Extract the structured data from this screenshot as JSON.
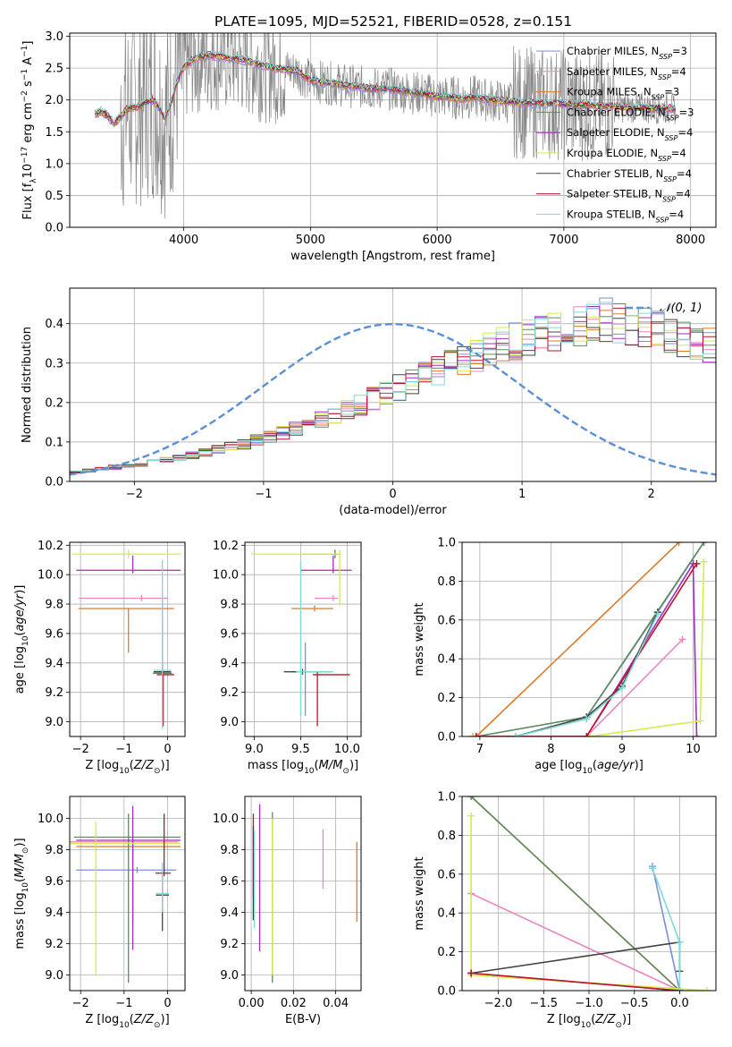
{
  "figure_title": "PLATE=1095, MJD=52521, FIBERID=0528, z=0.151",
  "models": [
    {
      "name": "Chabrier MILES",
      "nssp": "3",
      "color": "#7b8fd8"
    },
    {
      "name": "Salpeter MILES",
      "nssp": "4",
      "color": "#e887c2"
    },
    {
      "name": "Kroupa MILES",
      "nssp": "3",
      "color": "#e07a2a"
    },
    {
      "name": "Chabrier ELODIE",
      "nssp": "3",
      "color": "#5e8a60"
    },
    {
      "name": "Salpeter ELODIE",
      "nssp": "4",
      "color": "#9b30c0"
    },
    {
      "name": "Kroupa ELODIE",
      "nssp": "4",
      "color": "#d4ec4a"
    },
    {
      "name": "Chabrier STELIB",
      "nssp": "4",
      "color": "#444444"
    },
    {
      "name": "Salpeter STELIB",
      "nssp": "4",
      "color": "#c0102a"
    },
    {
      "name": "Kroupa STELIB",
      "nssp": "4",
      "color": "#7fd9d6"
    }
  ],
  "chart_data": [
    {
      "id": "spectrum",
      "type": "line",
      "xlabel": "wavelength [Angstrom, rest frame]",
      "ylabel": "Flux [f_λ 10^-17 erg cm^-2 s^-1 A^-1]",
      "xlim": [
        3100,
        8200
      ],
      "ylim": [
        0,
        3.05
      ],
      "xticks": [
        4000,
        5000,
        6000,
        7000,
        8000
      ],
      "yticks": [
        0.0,
        0.5,
        1.0,
        1.5,
        2.0,
        2.5,
        3.0
      ],
      "observed_color": "#888888",
      "x": [
        3300,
        3350,
        3400,
        3450,
        3500,
        3550,
        3600,
        3650,
        3700,
        3750,
        3800,
        3850,
        3900,
        3950,
        4000,
        4050,
        4100,
        4150,
        4200,
        4300,
        4400,
        4500,
        4600,
        4700,
        4800,
        4900,
        5000,
        5100,
        5200,
        5300,
        5400,
        5500,
        5600,
        5700,
        5800,
        5900,
        6000,
        6100,
        6200,
        6300,
        6400,
        6500,
        6600,
        6700,
        6800,
        6900,
        7000,
        7100,
        7200,
        7300,
        7400,
        7500,
        7600,
        7700,
        7800,
        7900
      ],
      "model_flux": [
        1.78,
        1.82,
        1.75,
        1.62,
        1.73,
        1.85,
        1.88,
        1.9,
        1.97,
        2.0,
        1.9,
        1.7,
        1.95,
        2.3,
        2.5,
        2.6,
        2.65,
        2.68,
        2.7,
        2.68,
        2.65,
        2.62,
        2.55,
        2.5,
        2.48,
        2.45,
        2.3,
        2.28,
        2.25,
        2.22,
        2.2,
        2.18,
        2.18,
        2.15,
        2.12,
        2.1,
        2.05,
        2.05,
        2.02,
        2.05,
        2.0,
        1.98,
        1.97,
        1.95,
        1.95,
        1.95,
        1.93,
        1.92,
        1.92,
        1.9,
        1.9,
        1.88,
        1.88,
        1.87,
        1.87,
        1.85
      ],
      "legend": "top-right"
    },
    {
      "id": "residual_hist",
      "type": "histogram",
      "xlabel": "(data-model)/error",
      "ylabel": "Normed distribution",
      "xlim": [
        -2.5,
        2.5
      ],
      "ylim": [
        0,
        0.49
      ],
      "xticks": [
        -2,
        -1,
        0,
        1,
        2
      ],
      "yticks": [
        0.0,
        0.1,
        0.2,
        0.3,
        0.4
      ],
      "gaussian_label": "𝒩(0, 1)",
      "gaussian_color": "#5b8fd6",
      "bin_width": 0.1,
      "bin_start": -2.5,
      "base_heights": [
        0.024,
        0.028,
        0.032,
        0.036,
        0.04,
        0.044,
        0.05,
        0.055,
        0.06,
        0.066,
        0.073,
        0.08,
        0.088,
        0.095,
        0.104,
        0.113,
        0.123,
        0.133,
        0.145,
        0.156,
        0.168,
        0.182,
        0.195,
        0.21,
        0.225,
        0.238,
        0.252,
        0.266,
        0.28,
        0.294,
        0.308,
        0.32,
        0.332,
        0.344,
        0.355,
        0.364,
        0.372,
        0.38,
        0.388,
        0.395,
        0.4,
        0.41,
        0.405,
        0.395,
        0.39,
        0.382,
        0.375,
        0.366,
        0.355,
        0.345,
        0.333,
        0.32,
        0.308,
        0.295,
        0.282,
        0.268,
        0.252,
        0.238,
        0.225,
        0.21,
        0.196,
        0.182,
        0.169,
        0.156,
        0.145,
        0.133,
        0.121,
        0.11,
        0.1,
        0.092,
        0.083,
        0.075,
        0.067,
        0.06,
        0.054,
        0.048,
        0.044,
        0.04,
        0.037,
        0.034,
        0.032,
        0.03,
        0.03,
        0.032,
        0.034,
        0.038,
        0.04,
        0.042,
        0.044,
        0.044,
        0.043,
        0.042,
        0.04,
        0.04,
        0.04,
        0.04,
        0.04,
        0.04,
        0.04,
        0.04
      ]
    },
    {
      "id": "age_vs_Z",
      "type": "errorbar",
      "xlabel": "Z [log10(Z/Z⊙)]",
      "ylabel": "age  [log10(age/yr)]",
      "xlim": [
        -2.25,
        0.4
      ],
      "ylim": [
        8.9,
        10.22
      ],
      "xticks": [
        -2,
        -1,
        0
      ],
      "yticks": [
        9.0,
        9.2,
        9.4,
        9.6,
        9.8,
        10.0,
        10.2
      ],
      "points": [
        {
          "x": -0.12,
          "y": 9.34,
          "xerr": [
            0.2,
            0.2
          ],
          "yerr": [
            0.3,
            0.5
          ],
          "model": 0
        },
        {
          "x": -0.6,
          "y": 9.84,
          "xerr": [
            1.45,
            0.6
          ],
          "yerr": [
            0.02,
            0.02
          ],
          "model": 1
        },
        {
          "x": -0.9,
          "y": 9.77,
          "xerr": [
            1.15,
            1.05
          ],
          "yerr": [
            0.3,
            0.0
          ],
          "model": 2
        },
        {
          "x": -0.12,
          "y": 9.33,
          "xerr": [
            0.22,
            0.22
          ],
          "yerr": [
            0.3,
            0.35
          ],
          "model": 3
        },
        {
          "x": -0.8,
          "y": 10.03,
          "xerr": [
            1.3,
            1.1
          ],
          "yerr": [
            0.02,
            0.1
          ],
          "model": 4
        },
        {
          "x": -0.9,
          "y": 10.14,
          "xerr": [
            1.3,
            1.2
          ],
          "yerr": [
            0.03,
            0.03
          ],
          "model": 5
        },
        {
          "x": -0.12,
          "y": 9.34,
          "xerr": [
            0.2,
            0.2
          ],
          "yerr": [
            0.02,
            0.02
          ],
          "model": 6
        },
        {
          "x": -0.1,
          "y": 9.32,
          "xerr": [
            0.15,
            0.25
          ],
          "yerr": [
            0.35,
            0.02
          ],
          "model": 7
        },
        {
          "x": -0.12,
          "y": 9.35,
          "xerr": [
            0.2,
            0.2
          ],
          "yerr": [
            0.4,
            0.75
          ],
          "model": 8
        }
      ]
    },
    {
      "id": "age_vs_mass",
      "type": "errorbar",
      "xlabel": "mass [log10(M/M⊙)]",
      "ylabel": "",
      "xlim": [
        8.9,
        10.15
      ],
      "ylim": [
        8.9,
        10.22
      ],
      "xticks": [
        9.0,
        9.5,
        10.0
      ],
      "yticks": [
        9.0,
        9.2,
        9.4,
        9.6,
        9.8,
        10.0,
        10.2
      ],
      "points": [
        {
          "x": 9.55,
          "y": 9.34,
          "xerr": [
            0.15,
            0.2
          ],
          "yerr": [
            0.3,
            0.2
          ],
          "model": 0
        },
        {
          "x": 9.85,
          "y": 9.84,
          "xerr": [
            0.2,
            0.05
          ],
          "yerr": [
            0.02,
            0.02
          ],
          "model": 1
        },
        {
          "x": 9.65,
          "y": 9.77,
          "xerr": [
            0.25,
            0.2
          ],
          "yerr": [
            0.02,
            0.02
          ],
          "model": 2
        },
        {
          "x": 9.87,
          "y": 10.14,
          "xerr": [
            0.35,
            0.05
          ],
          "yerr": [
            0.03,
            0.03
          ],
          "model": 3
        },
        {
          "x": 9.85,
          "y": 10.03,
          "xerr": [
            0.35,
            0.2
          ],
          "yerr": [
            0.02,
            0.1
          ],
          "model": 4
        },
        {
          "x": 9.92,
          "y": 10.14,
          "xerr": [
            0.95,
            0.0
          ],
          "yerr": [
            0.35,
            0.03
          ],
          "model": 5
        },
        {
          "x": 9.52,
          "y": 9.34,
          "xerr": [
            0.2,
            0.3
          ],
          "yerr": [
            0.02,
            0.02
          ],
          "model": 6
        },
        {
          "x": 9.68,
          "y": 9.32,
          "xerr": [
            0.05,
            0.35
          ],
          "yerr": [
            0.35,
            0.02
          ],
          "model": 7
        },
        {
          "x": 9.5,
          "y": 9.34,
          "xerr": [
            0.05,
            0.35
          ],
          "yerr": [
            0.3,
            0.75
          ],
          "model": 8
        }
      ]
    },
    {
      "id": "mass_weight_vs_age",
      "type": "line",
      "xlabel": "age  [log10(age/yr)]",
      "ylabel": "mass weight",
      "xlim": [
        6.75,
        10.32
      ],
      "ylim": [
        0,
        1.0
      ],
      "xticks": [
        7,
        8,
        9,
        10
      ],
      "yticks": [
        0.0,
        0.2,
        0.4,
        0.6,
        0.8,
        1.0
      ],
      "series": [
        {
          "model": 0,
          "x": [
            7.5,
            8.5,
            9.5,
            10.15
          ],
          "y": [
            0.0,
            0.1,
            0.64,
            1.0
          ]
        },
        {
          "model": 1,
          "x": [
            6.9,
            8.5,
            9.85
          ],
          "y": [
            0.0,
            0.0,
            0.5
          ]
        },
        {
          "model": 2,
          "x": [
            6.95,
            9.8
          ],
          "y": [
            0.0,
            1.0
          ]
        },
        {
          "model": 3,
          "x": [
            6.95,
            8.5,
            10.15
          ],
          "y": [
            0.0,
            0.1,
            1.0
          ]
        },
        {
          "model": 4,
          "x": [
            6.9,
            8.5,
            10.0,
            10.05
          ],
          "y": [
            0.0,
            0.0,
            0.89,
            0.0
          ]
        },
        {
          "model": 5,
          "x": [
            6.9,
            8.55,
            10.1,
            10.15
          ],
          "y": [
            0.0,
            0.0,
            0.08,
            0.9
          ]
        },
        {
          "model": 6,
          "x": [
            7.5,
            8.5,
            9.0,
            9.5
          ],
          "y": [
            0.0,
            0.1,
            0.26,
            0.64
          ]
        },
        {
          "model": 7,
          "x": [
            6.95,
            8.5,
            10.05
          ],
          "y": [
            0.0,
            0.0,
            0.89
          ]
        },
        {
          "model": 8,
          "x": [
            7.5,
            8.5,
            9.0,
            9.5
          ],
          "y": [
            0.0,
            0.09,
            0.25,
            0.63
          ]
        }
      ]
    },
    {
      "id": "mass_vs_Z",
      "type": "errorbar",
      "xlabel": "Z [log10(Z/Z⊙)]",
      "ylabel": "mass [log10(M/M⊙)]",
      "xlim": [
        -2.25,
        0.4
      ],
      "ylim": [
        8.9,
        10.14
      ],
      "xticks": [
        -2,
        -1,
        0
      ],
      "yticks": [
        9.0,
        9.2,
        9.4,
        9.6,
        9.8,
        10.0
      ],
      "points": [
        {
          "x": -0.7,
          "y": 9.67,
          "xerr": [
            1.4,
            0.9
          ],
          "yerr": [
            0.02,
            0.02
          ],
          "model": 0
        },
        {
          "x": -0.9,
          "y": 9.85,
          "xerr": [
            1.4,
            1.15
          ],
          "yerr": [
            0.02,
            0.02
          ],
          "model": 1
        },
        {
          "x": -0.8,
          "y": 9.82,
          "xerr": [
            1.3,
            1.1
          ],
          "yerr": [
            0.5,
            0.02
          ],
          "model": 2
        },
        {
          "x": -0.9,
          "y": 9.88,
          "xerr": [
            1.25,
            1.2
          ],
          "yerr": [
            0.93,
            0.15
          ],
          "model": 3
        },
        {
          "x": -0.8,
          "y": 9.86,
          "xerr": [
            1.3,
            1.1
          ],
          "yerr": [
            0.7,
            0.22
          ],
          "model": 4
        },
        {
          "x": -1.65,
          "y": 9.84,
          "xerr": [
            0.6,
            1.95
          ],
          "yerr": [
            0.84,
            0.14
          ],
          "model": 5
        },
        {
          "x": -0.12,
          "y": 9.51,
          "xerr": [
            0.15,
            0.15
          ],
          "yerr": [
            0.23,
            0.15
          ],
          "model": 6
        },
        {
          "x": -0.08,
          "y": 9.65,
          "xerr": [
            0.2,
            0.15
          ],
          "yerr": [
            0.02,
            0.38
          ],
          "model": 7
        },
        {
          "x": -0.12,
          "y": 9.52,
          "xerr": [
            0.15,
            0.15
          ],
          "yerr": [
            0.12,
            0.2
          ],
          "model": 8
        }
      ]
    },
    {
      "id": "mass_vs_EBV",
      "type": "errorbar",
      "xlabel": "E(B-V)",
      "ylabel": "",
      "xlim": [
        -0.003,
        0.052
      ],
      "ylim": [
        8.9,
        10.14
      ],
      "xticks": [
        0.0,
        0.02,
        0.04
      ],
      "yticks": [
        9.0,
        9.2,
        9.4,
        9.6,
        9.8,
        10.0
      ],
      "points": [
        {
          "x": 0.001,
          "y": 9.6,
          "xerr": [
            0,
            0
          ],
          "yerr": [
            0.25,
            0.35
          ],
          "model": 0
        },
        {
          "x": 0.034,
          "y": 9.75,
          "xerr": [
            0,
            0
          ],
          "yerr": [
            0.2,
            0.18
          ],
          "model": 1
        },
        {
          "x": 0.05,
          "y": 9.6,
          "xerr": [
            0,
            0
          ],
          "yerr": [
            0.26,
            0.25
          ],
          "model": 2
        },
        {
          "x": 0.01,
          "y": 9.6,
          "xerr": [
            0,
            0
          ],
          "yerr": [
            0.65,
            0.44
          ],
          "model": 3
        },
        {
          "x": 0.004,
          "y": 9.6,
          "xerr": [
            0,
            0
          ],
          "yerr": [
            0.45,
            0.49
          ],
          "model": 4
        },
        {
          "x": 0.01,
          "y": 9.6,
          "xerr": [
            0,
            0
          ],
          "yerr": [
            0.6,
            0.4
          ],
          "model": 5
        },
        {
          "x": 0.001,
          "y": 9.65,
          "xerr": [
            0,
            0
          ],
          "yerr": [
            0.3,
            0.3
          ],
          "model": 6
        },
        {
          "x": 0.001,
          "y": 9.7,
          "xerr": [
            0,
            0
          ],
          "yerr": [
            0.2,
            0.33
          ],
          "model": 7
        },
        {
          "x": 0.0015,
          "y": 9.6,
          "xerr": [
            0,
            0
          ],
          "yerr": [
            0.3,
            0.32
          ],
          "model": 8
        }
      ]
    },
    {
      "id": "mass_weight_vs_Z",
      "type": "line",
      "xlabel": "Z [log10(Z/Z⊙)]",
      "ylabel": "mass weight",
      "xlim": [
        -2.4,
        0.4
      ],
      "ylim": [
        0,
        1.0
      ],
      "xticks": [
        -2.0,
        -1.5,
        -1.0,
        -0.5,
        0.0
      ],
      "yticks": [
        0.0,
        0.2,
        0.4,
        0.6,
        0.8,
        1.0
      ],
      "series": [
        {
          "model": 0,
          "x": [
            -0.3,
            0.0
          ],
          "y": [
            0.64,
            0.0
          ]
        },
        {
          "model": 1,
          "x": [
            -2.3,
            0.0
          ],
          "y": [
            0.5,
            0.0
          ]
        },
        {
          "model": 2,
          "x": [
            -2.3,
            0.0
          ],
          "y": [
            1.0,
            0.0
          ]
        },
        {
          "model": 3,
          "x": [
            -2.3,
            0.0
          ],
          "y": [
            1.0,
            0.0
          ]
        },
        {
          "model": 4,
          "x": [
            -2.3,
            0.0
          ],
          "y": [
            0.09,
            0.0
          ]
        },
        {
          "model": 5,
          "x": [
            -2.3,
            -2.3,
            0.3
          ],
          "y": [
            0.9,
            0.08,
            0.0
          ]
        },
        {
          "model": 6,
          "x": [
            -2.3,
            0.0,
            0.0
          ],
          "y": [
            0.09,
            0.25,
            0.1
          ]
        },
        {
          "model": 7,
          "x": [
            -2.3,
            0.0
          ],
          "y": [
            0.09,
            0.0
          ]
        },
        {
          "model": 8,
          "x": [
            -0.3,
            0.0,
            0.0
          ],
          "y": [
            0.63,
            0.25,
            0.0
          ]
        }
      ]
    }
  ]
}
